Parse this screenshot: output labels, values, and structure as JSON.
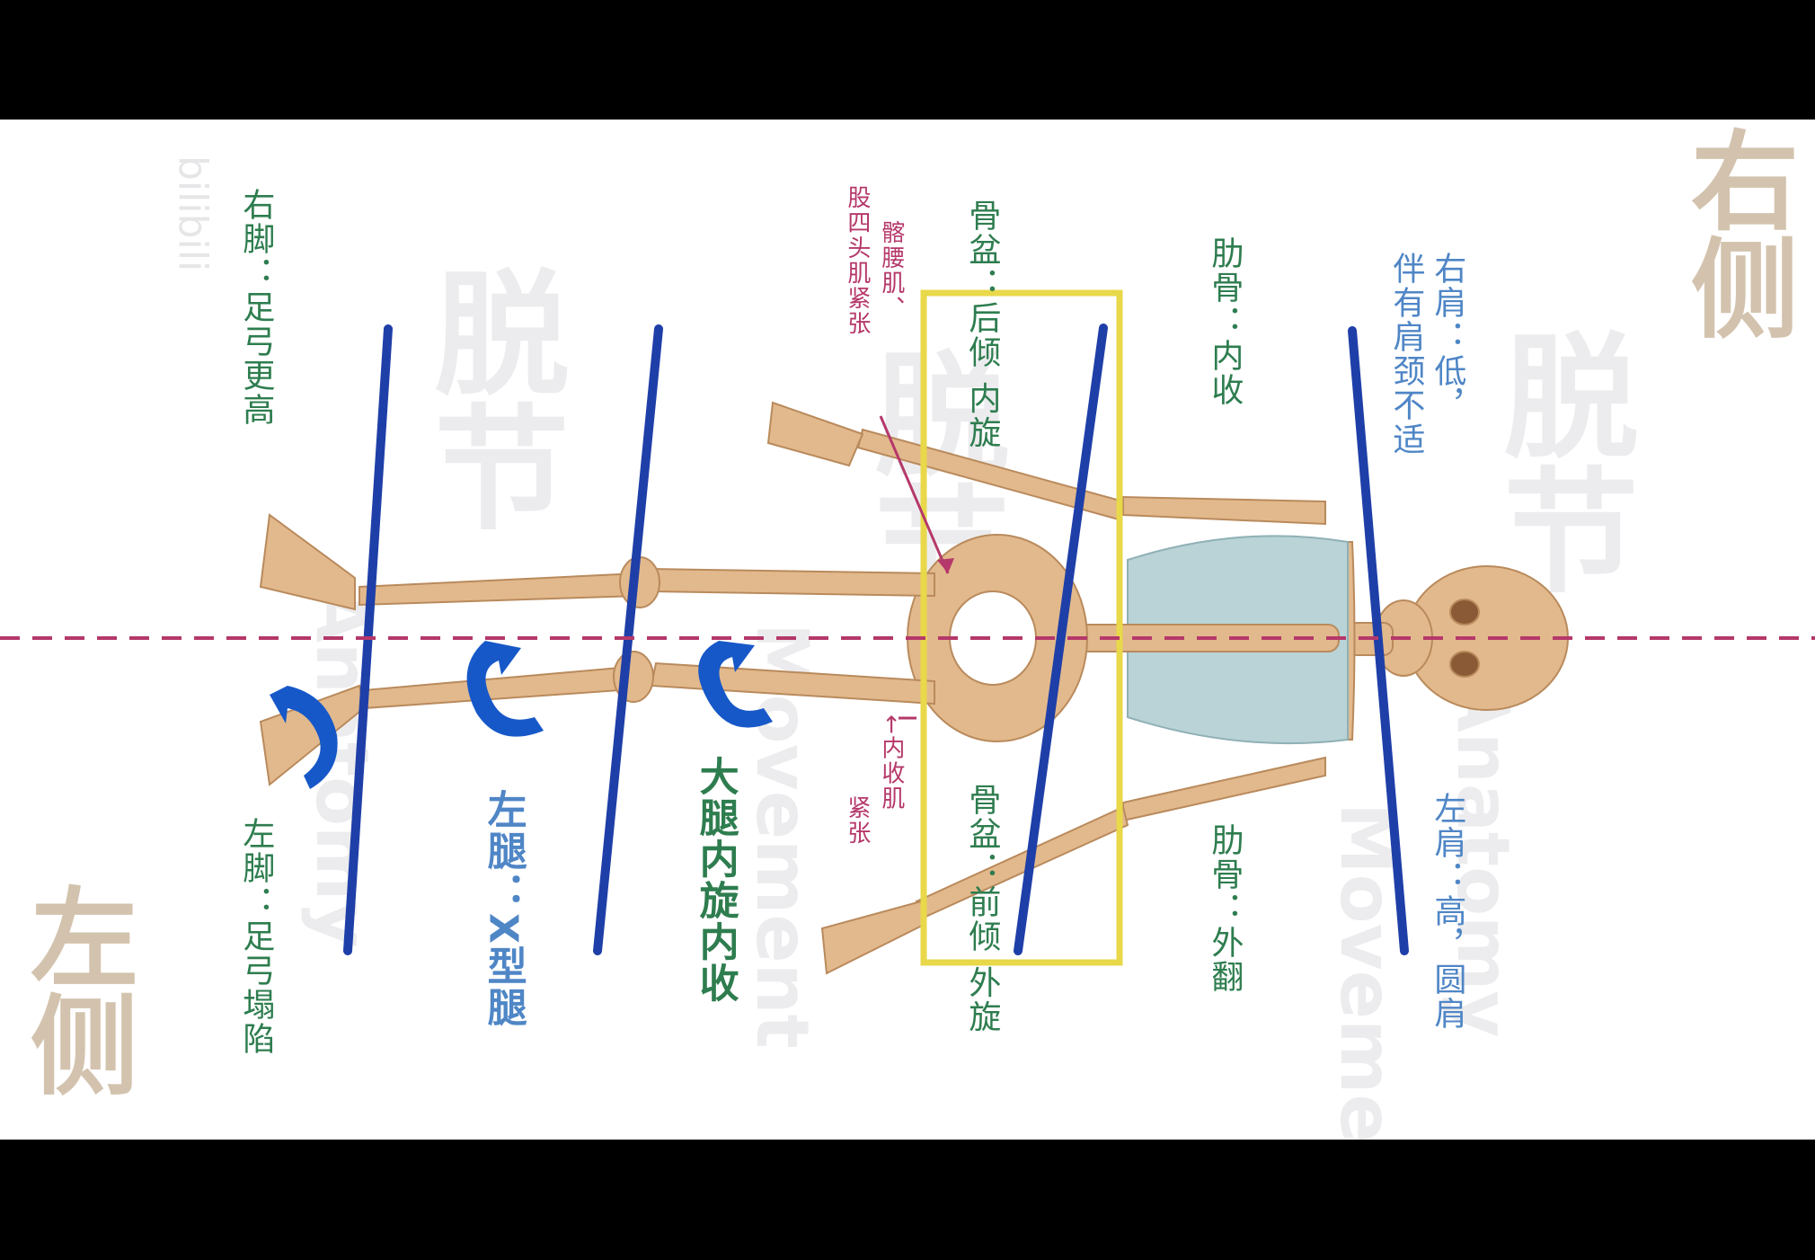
{
  "side_labels": {
    "right": "右侧",
    "left": "左侧"
  },
  "watermarks": {
    "channel": "脱节",
    "brand_a": "Anatomy",
    "brand_b": "Movement",
    "platform": "bilibili"
  },
  "labels": {
    "right_shoulder_l1": "右肩：低，",
    "right_shoulder_l2": "伴有肩颈不适",
    "left_shoulder": "左肩：高，圆肩",
    "rib_right": "肋骨：内收",
    "rib_left": "肋骨：外翻",
    "pelvis_right": "骨盆：后倾 内旋",
    "pelvis_left": "骨盆：前倾 外旋",
    "iliopsoas_l1": "髂腰肌、",
    "iliopsoas_l2": "股四头肌紧张",
    "adductor_l1": "←内收肌",
    "adductor_l2": "紧张",
    "thigh": "大腿内旋内收",
    "left_leg": "左腿：X型腿",
    "right_foot": "右脚：足弓更高",
    "left_foot": "左脚：足弓塌陷"
  },
  "colors": {
    "green": "#2e7d4f",
    "blue": "#4f86c6",
    "magenta": "#b5386a",
    "axis_line": "#1f3fa8",
    "highlight_box": "#e8d84a",
    "midline": "#b5386a",
    "bone": "#e2b98c",
    "rib": "#b9d3d6",
    "side_label": "#d3c3ae"
  },
  "icons": [
    "skeleton-figure",
    "rotation-arrow-icon"
  ]
}
